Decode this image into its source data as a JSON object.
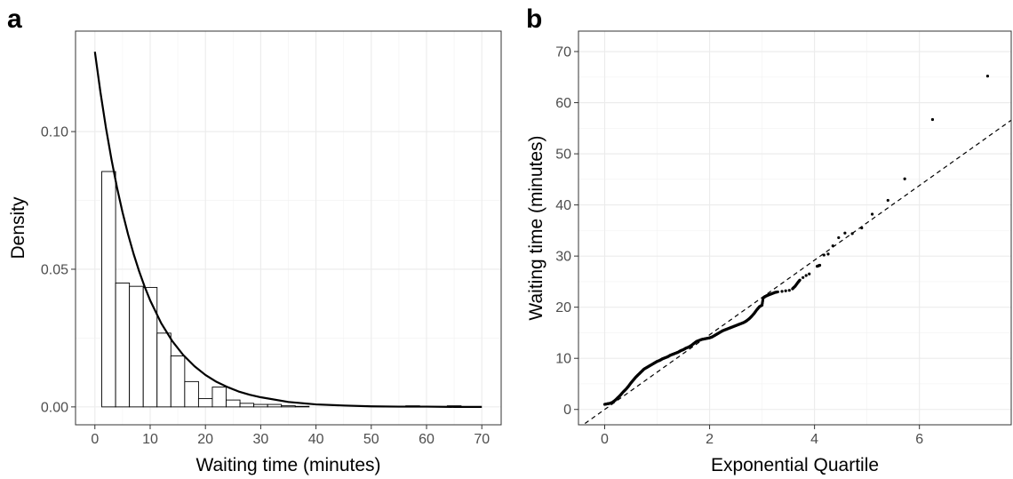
{
  "panels": {
    "a": "a",
    "b": "b"
  },
  "chart_data": [
    {
      "type": "bar",
      "subtype": "histogram-with-density-curve",
      "panel": "a",
      "xlabel": "Waiting time (minutes)",
      "ylabel": "Density",
      "xlim": [
        -3.5,
        73.5
      ],
      "ylim": [
        -0.0065,
        0.1365
      ],
      "xticks": [
        0,
        10,
        20,
        30,
        40,
        50,
        60,
        70
      ],
      "xtick_labels": [
        "0",
        "10",
        "20",
        "30",
        "40",
        "50",
        "60",
        "70"
      ],
      "yticks": [
        0,
        0.05,
        0.1
      ],
      "ytick_labels": [
        "0.00",
        "0.05",
        "0.10"
      ],
      "grid": true,
      "bin_width": 2.5,
      "bins": [
        {
          "x0": 1.25,
          "x1": 3.75,
          "density": 0.0855
        },
        {
          "x0": 3.75,
          "x1": 6.25,
          "density": 0.045
        },
        {
          "x0": 6.25,
          "x1": 8.75,
          "density": 0.0438
        },
        {
          "x0": 8.75,
          "x1": 11.25,
          "density": 0.0434
        },
        {
          "x0": 11.25,
          "x1": 13.75,
          "density": 0.0268
        },
        {
          "x0": 13.75,
          "x1": 16.25,
          "density": 0.0185
        },
        {
          "x0": 16.25,
          "x1": 18.75,
          "density": 0.0092
        },
        {
          "x0": 18.75,
          "x1": 21.25,
          "density": 0.003
        },
        {
          "x0": 21.25,
          "x1": 23.75,
          "density": 0.0072
        },
        {
          "x0": 23.75,
          "x1": 26.25,
          "density": 0.0025
        },
        {
          "x0": 26.25,
          "x1": 28.75,
          "density": 0.0013
        },
        {
          "x0": 28.75,
          "x1": 31.25,
          "density": 0.0009
        },
        {
          "x0": 31.25,
          "x1": 33.75,
          "density": 0.0009
        },
        {
          "x0": 33.75,
          "x1": 36.25,
          "density": 0.0004
        },
        {
          "x0": 36.25,
          "x1": 38.75,
          "density": 0.0002
        },
        {
          "x0": 56.25,
          "x1": 58.75,
          "density": 0.0004
        },
        {
          "x0": 63.75,
          "x1": 66.25,
          "density": 0.0004
        }
      ],
      "density_curve": {
        "x": [
          0,
          1,
          2,
          3,
          4,
          5,
          6,
          7,
          8,
          9,
          10,
          12,
          14,
          16,
          18,
          20,
          22,
          24,
          26,
          28,
          30,
          35,
          40,
          45,
          50,
          55,
          60,
          65,
          70
        ],
        "y": [
          0.129,
          0.1144,
          0.1014,
          0.0899,
          0.0797,
          0.0707,
          0.0627,
          0.0556,
          0.0493,
          0.0437,
          0.0387,
          0.0304,
          0.0239,
          0.0188,
          0.0148,
          0.0116,
          0.0091,
          0.0072,
          0.0056,
          0.0044,
          0.0035,
          0.0018,
          0.0009,
          0.0005,
          0.0002,
          0.0001,
          0.0001,
          0.0,
          0.0
        ]
      }
    },
    {
      "type": "scatter",
      "subtype": "qq-plot-with-reference-line",
      "panel": "b",
      "xlabel": "Exponential Quartile",
      "ylabel": "Waiting time (minutes)",
      "xlim": [
        -0.5,
        7.75
      ],
      "ylim": [
        -3,
        74
      ],
      "xticks": [
        0,
        2,
        4,
        6
      ],
      "xtick_labels": [
        "0",
        "2",
        "4",
        "6"
      ],
      "yticks": [
        0,
        10,
        20,
        30,
        40,
        50,
        60,
        70
      ],
      "ytick_labels": [
        "0",
        "10",
        "20",
        "30",
        "40",
        "50",
        "60",
        "70"
      ],
      "grid": true,
      "points": [
        [
          0.0,
          1.0
        ],
        [
          0.05,
          1.1
        ],
        [
          0.1,
          1.2
        ],
        [
          0.15,
          1.4
        ],
        [
          0.2,
          1.8
        ],
        [
          0.25,
          2.3
        ],
        [
          0.3,
          2.8
        ],
        [
          0.35,
          3.4
        ],
        [
          0.4,
          3.9
        ],
        [
          0.45,
          4.5
        ],
        [
          0.5,
          5.2
        ],
        [
          0.55,
          5.8
        ],
        [
          0.6,
          6.4
        ],
        [
          0.65,
          6.9
        ],
        [
          0.7,
          7.4
        ],
        [
          0.75,
          7.9
        ],
        [
          0.8,
          8.2
        ],
        [
          0.85,
          8.5
        ],
        [
          0.9,
          8.8
        ],
        [
          0.95,
          9.1
        ],
        [
          1.0,
          9.4
        ],
        [
          1.05,
          9.6
        ],
        [
          1.1,
          9.9
        ],
        [
          1.15,
          10.1
        ],
        [
          1.2,
          10.3
        ],
        [
          1.25,
          10.6
        ],
        [
          1.3,
          10.8
        ],
        [
          1.35,
          11.0
        ],
        [
          1.4,
          11.2
        ],
        [
          1.45,
          11.5
        ],
        [
          1.5,
          11.7
        ],
        [
          1.55,
          12.0
        ],
        [
          1.6,
          12.2
        ],
        [
          1.65,
          12.5
        ],
        [
          1.7,
          12.9
        ],
        [
          1.75,
          13.3
        ],
        [
          1.8,
          13.5
        ],
        [
          1.85,
          13.7
        ],
        [
          1.9,
          13.8
        ],
        [
          1.95,
          13.9
        ],
        [
          2.0,
          14.0
        ],
        [
          2.05,
          14.2
        ],
        [
          2.1,
          14.5
        ],
        [
          2.15,
          14.8
        ],
        [
          2.2,
          15.1
        ],
        [
          2.25,
          15.4
        ],
        [
          2.3,
          15.6
        ],
        [
          2.35,
          15.8
        ],
        [
          2.4,
          16.0
        ],
        [
          2.45,
          16.2
        ],
        [
          2.5,
          16.4
        ],
        [
          2.55,
          16.6
        ],
        [
          2.6,
          16.8
        ],
        [
          2.65,
          17.0
        ],
        [
          2.7,
          17.3
        ],
        [
          2.75,
          17.7
        ],
        [
          2.8,
          18.2
        ],
        [
          2.85,
          18.8
        ],
        [
          2.9,
          19.5
        ],
        [
          2.95,
          20.1
        ],
        [
          3.0,
          20.4
        ],
        [
          3.02,
          21.8
        ],
        [
          3.06,
          22.1
        ],
        [
          3.1,
          22.3
        ],
        [
          3.15,
          22.5
        ],
        [
          3.2,
          22.7
        ],
        [
          3.25,
          22.9
        ],
        [
          3.3,
          23.0
        ],
        [
          3.38,
          23.1
        ],
        [
          3.45,
          23.2
        ],
        [
          3.52,
          23.3
        ],
        [
          3.58,
          23.6
        ],
        [
          3.63,
          24.1
        ],
        [
          3.68,
          24.8
        ],
        [
          3.72,
          25.3
        ],
        [
          3.78,
          25.8
        ],
        [
          3.84,
          26.2
        ],
        [
          3.9,
          26.5
        ],
        [
          4.05,
          28.0
        ],
        [
          4.1,
          28.2
        ],
        [
          4.18,
          30.2
        ],
        [
          4.26,
          30.4
        ],
        [
          4.35,
          32.0
        ],
        [
          4.46,
          33.6
        ],
        [
          4.58,
          34.5
        ],
        [
          4.72,
          34.4
        ],
        [
          4.9,
          35.5
        ],
        [
          5.1,
          38.2
        ],
        [
          5.4,
          40.9
        ],
        [
          5.72,
          45.1
        ],
        [
          6.25,
          56.7
        ],
        [
          7.3,
          65.2
        ]
      ],
      "reference_line": {
        "intercept": 0.0,
        "slope": 7.3
      }
    }
  ]
}
